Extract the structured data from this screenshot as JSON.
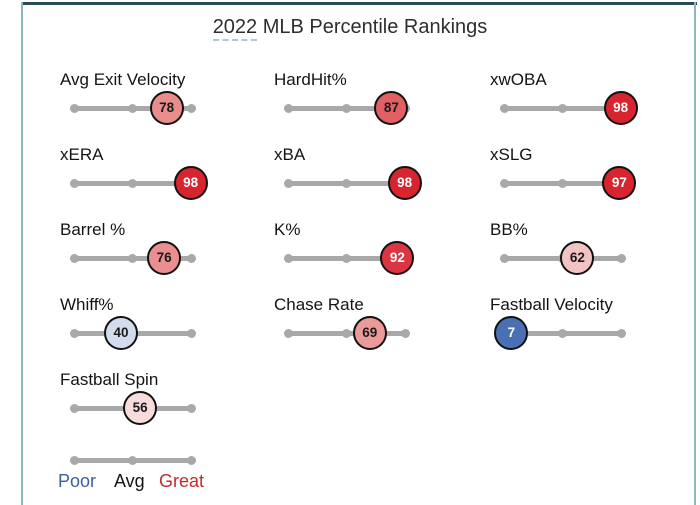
{
  "title": {
    "year": "2022",
    "rest": " MLB Percentile Rankings"
  },
  "frame": {
    "top_color": "#2a4c59",
    "side_color": "#8fb6c6"
  },
  "legend": {
    "poor": "Poor",
    "avg": "Avg",
    "great": "Great",
    "poor_color": "#3a5fa5",
    "avg_color": "#141414",
    "great_color": "#c32b2b"
  },
  "chart_data": {
    "type": "bar",
    "variant": "percentile-sliders",
    "title": "2022 MLB Percentile Rankings",
    "range": [
      0,
      100
    ],
    "track_color": "#a8a8a8",
    "legend_labels": [
      "Poor",
      "Avg",
      "Great"
    ],
    "categories": [
      "Avg Exit Velocity",
      "HardHit%",
      "xwOBA",
      "xERA",
      "xBA",
      "xSLG",
      "Barrel %",
      "K%",
      "BB%",
      "Whiff%",
      "Chase Rate",
      "Fastball Velocity",
      "Fastball Spin"
    ],
    "values": [
      78,
      87,
      98,
      98,
      98,
      97,
      76,
      92,
      62,
      40,
      69,
      7,
      56
    ],
    "stats": [
      {
        "label": "Avg Exit Velocity",
        "value": 78,
        "column": 0,
        "row": 0,
        "fill": "#e88c8c",
        "text_color": "#1a1a1a"
      },
      {
        "label": "HardHit%",
        "value": 87,
        "column": 1,
        "row": 0,
        "fill": "#e25f63",
        "text_color": "#1a1a1a"
      },
      {
        "label": "xwOBA",
        "value": 98,
        "column": 2,
        "row": 0,
        "fill": "#d7242e",
        "text_color": "#ffffff"
      },
      {
        "label": "xERA",
        "value": 98,
        "column": 0,
        "row": 1,
        "fill": "#d7242e",
        "text_color": "#ffffff"
      },
      {
        "label": "xBA",
        "value": 98,
        "column": 1,
        "row": 1,
        "fill": "#d7242e",
        "text_color": "#ffffff"
      },
      {
        "label": "xSLG",
        "value": 97,
        "column": 2,
        "row": 1,
        "fill": "#d7242e",
        "text_color": "#ffffff"
      },
      {
        "label": "Barrel %",
        "value": 76,
        "column": 0,
        "row": 2,
        "fill": "#e98f8f",
        "text_color": "#1a1a1a"
      },
      {
        "label": "K%",
        "value": 92,
        "column": 1,
        "row": 2,
        "fill": "#da3540",
        "text_color": "#ffffff"
      },
      {
        "label": "BB%",
        "value": 62,
        "column": 2,
        "row": 2,
        "fill": "#f3c3c4",
        "text_color": "#1a1a1a"
      },
      {
        "label": "Whiff%",
        "value": 40,
        "column": 0,
        "row": 3,
        "fill": "#d3dcec",
        "text_color": "#1a1a1a"
      },
      {
        "label": "Chase Rate",
        "value": 69,
        "column": 1,
        "row": 3,
        "fill": "#eb9a9a",
        "text_color": "#1a1a1a"
      },
      {
        "label": "Fastball Velocity",
        "value": 7,
        "column": 2,
        "row": 3,
        "fill": "#4a70b4",
        "text_color": "#ffffff"
      },
      {
        "label": "Fastball Spin",
        "value": 56,
        "column": 0,
        "row": 4,
        "fill": "#f8dcdc",
        "text_color": "#1a1a1a"
      }
    ]
  }
}
